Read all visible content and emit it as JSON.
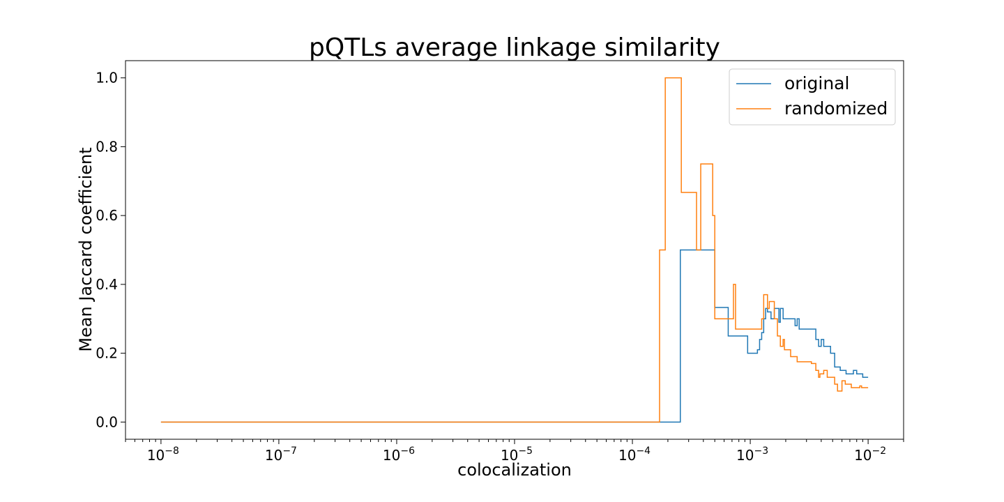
{
  "chart_data": {
    "type": "line",
    "title": "pQTLs average linkage similarity",
    "xlabel": "colocalization",
    "ylabel": "Mean Jaccard coefficient",
    "xscale": "log",
    "xlim": [
      5e-09,
      0.02
    ],
    "ylim": [
      -0.05,
      1.05
    ],
    "x_ticks": [
      {
        "value": 1e-08,
        "base": "10",
        "exp": "−8"
      },
      {
        "value": 1e-07,
        "base": "10",
        "exp": "−7"
      },
      {
        "value": 1e-06,
        "base": "10",
        "exp": "−6"
      },
      {
        "value": 1e-05,
        "base": "10",
        "exp": "−5"
      },
      {
        "value": 0.0001,
        "base": "10",
        "exp": "−4"
      },
      {
        "value": 0.001,
        "base": "10",
        "exp": "−3"
      },
      {
        "value": 0.01,
        "base": "10",
        "exp": "−2"
      }
    ],
    "y_ticks": [
      {
        "value": 0.0,
        "label": "0.0"
      },
      {
        "value": 0.2,
        "label": "0.2"
      },
      {
        "value": 0.4,
        "label": "0.4"
      },
      {
        "value": 0.6,
        "label": "0.6"
      },
      {
        "value": 0.8,
        "label": "0.8"
      },
      {
        "value": 1.0,
        "label": "1.0"
      }
    ],
    "grid": false,
    "legend": "top-right",
    "series": [
      {
        "name": "original",
        "color": "#1f77b4",
        "step": "post",
        "points": [
          [
            1e-08,
            0.0
          ],
          [
            0.000255,
            0.0
          ],
          [
            0.000255,
            0.5
          ],
          [
            0.0005,
            0.5
          ],
          [
            0.0005,
            0.333
          ],
          [
            0.00065,
            0.333
          ],
          [
            0.00065,
            0.25
          ],
          [
            0.00095,
            0.25
          ],
          [
            0.00095,
            0.2
          ],
          [
            0.00115,
            0.2
          ],
          [
            0.00115,
            0.21
          ],
          [
            0.0012,
            0.21
          ],
          [
            0.0012,
            0.24
          ],
          [
            0.00125,
            0.24
          ],
          [
            0.00125,
            0.26
          ],
          [
            0.0013,
            0.26
          ],
          [
            0.0013,
            0.3
          ],
          [
            0.00135,
            0.3
          ],
          [
            0.00135,
            0.33
          ],
          [
            0.0014,
            0.33
          ],
          [
            0.0014,
            0.32
          ],
          [
            0.0015,
            0.32
          ],
          [
            0.0015,
            0.3
          ],
          [
            0.0016,
            0.3
          ],
          [
            0.0016,
            0.33
          ],
          [
            0.00175,
            0.33
          ],
          [
            0.00175,
            0.29
          ],
          [
            0.0018,
            0.29
          ],
          [
            0.0018,
            0.33
          ],
          [
            0.0019,
            0.33
          ],
          [
            0.0019,
            0.3
          ],
          [
            0.0024,
            0.3
          ],
          [
            0.0024,
            0.28
          ],
          [
            0.0025,
            0.28
          ],
          [
            0.0025,
            0.3
          ],
          [
            0.0026,
            0.3
          ],
          [
            0.0026,
            0.27
          ],
          [
            0.0036,
            0.27
          ],
          [
            0.0036,
            0.24
          ],
          [
            0.0038,
            0.24
          ],
          [
            0.0038,
            0.22
          ],
          [
            0.004,
            0.22
          ],
          [
            0.004,
            0.24
          ],
          [
            0.0042,
            0.24
          ],
          [
            0.0042,
            0.22
          ],
          [
            0.0048,
            0.22
          ],
          [
            0.0048,
            0.2
          ],
          [
            0.0052,
            0.2
          ],
          [
            0.0052,
            0.16
          ],
          [
            0.0058,
            0.16
          ],
          [
            0.0058,
            0.15
          ],
          [
            0.0065,
            0.15
          ],
          [
            0.0065,
            0.14
          ],
          [
            0.0075,
            0.14
          ],
          [
            0.0075,
            0.15
          ],
          [
            0.008,
            0.15
          ],
          [
            0.008,
            0.14
          ],
          [
            0.009,
            0.14
          ],
          [
            0.009,
            0.13
          ],
          [
            0.01,
            0.13
          ]
        ]
      },
      {
        "name": "randomized",
        "color": "#ff7f0e",
        "step": "post",
        "points": [
          [
            1e-08,
            0.0
          ],
          [
            0.00017,
            0.0
          ],
          [
            0.00017,
            0.5
          ],
          [
            0.00019,
            0.5
          ],
          [
            0.00019,
            1.0
          ],
          [
            0.00026,
            1.0
          ],
          [
            0.00026,
            0.667
          ],
          [
            0.00035,
            0.667
          ],
          [
            0.00035,
            0.5
          ],
          [
            0.00038,
            0.5
          ],
          [
            0.00038,
            0.75
          ],
          [
            0.00048,
            0.75
          ],
          [
            0.00048,
            0.6
          ],
          [
            0.0005,
            0.6
          ],
          [
            0.0005,
            0.3
          ],
          [
            0.00072,
            0.3
          ],
          [
            0.00072,
            0.4
          ],
          [
            0.00075,
            0.4
          ],
          [
            0.00075,
            0.27
          ],
          [
            0.00125,
            0.27
          ],
          [
            0.00125,
            0.3
          ],
          [
            0.0013,
            0.3
          ],
          [
            0.0013,
            0.37
          ],
          [
            0.0014,
            0.37
          ],
          [
            0.0014,
            0.33
          ],
          [
            0.00145,
            0.33
          ],
          [
            0.00145,
            0.35
          ],
          [
            0.0016,
            0.35
          ],
          [
            0.0016,
            0.3
          ],
          [
            0.0017,
            0.3
          ],
          [
            0.0017,
            0.25
          ],
          [
            0.0018,
            0.25
          ],
          [
            0.0018,
            0.22
          ],
          [
            0.0019,
            0.22
          ],
          [
            0.0019,
            0.24
          ],
          [
            0.00195,
            0.24
          ],
          [
            0.00195,
            0.21
          ],
          [
            0.0022,
            0.21
          ],
          [
            0.0022,
            0.19
          ],
          [
            0.0025,
            0.19
          ],
          [
            0.0025,
            0.175
          ],
          [
            0.0033,
            0.175
          ],
          [
            0.0033,
            0.17
          ],
          [
            0.0036,
            0.17
          ],
          [
            0.0036,
            0.15
          ],
          [
            0.0038,
            0.15
          ],
          [
            0.0038,
            0.13
          ],
          [
            0.0039,
            0.13
          ],
          [
            0.0039,
            0.14
          ],
          [
            0.0042,
            0.14
          ],
          [
            0.0042,
            0.15
          ],
          [
            0.0045,
            0.15
          ],
          [
            0.0045,
            0.13
          ],
          [
            0.0052,
            0.13
          ],
          [
            0.0052,
            0.11
          ],
          [
            0.0055,
            0.11
          ],
          [
            0.0055,
            0.09
          ],
          [
            0.006,
            0.09
          ],
          [
            0.006,
            0.12
          ],
          [
            0.0064,
            0.12
          ],
          [
            0.0064,
            0.11
          ],
          [
            0.0072,
            0.11
          ],
          [
            0.0072,
            0.1
          ],
          [
            0.0085,
            0.1
          ],
          [
            0.0085,
            0.105
          ],
          [
            0.0088,
            0.105
          ],
          [
            0.0088,
            0.1
          ],
          [
            0.01,
            0.1
          ]
        ]
      }
    ]
  }
}
